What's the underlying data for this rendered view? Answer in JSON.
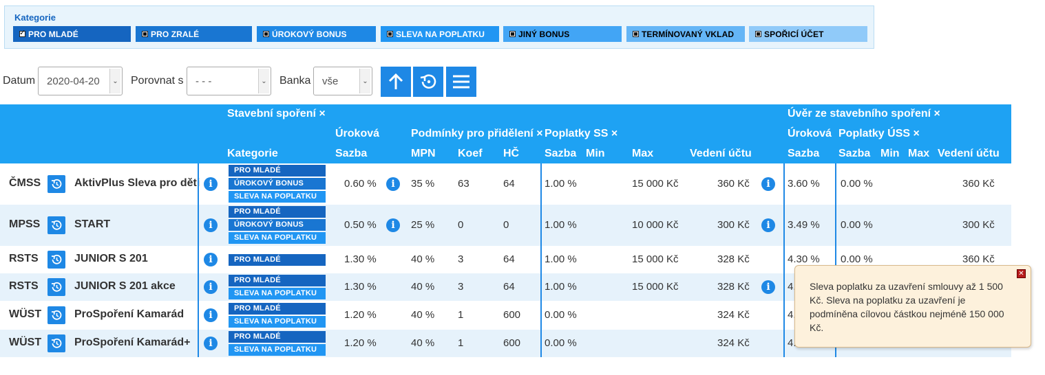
{
  "categories": {
    "title": "Kategorie",
    "chips": [
      {
        "label": "PRO MLADÉ",
        "checked": true,
        "color": "#1565c0"
      },
      {
        "label": "PRO ZRALÉ",
        "checked": false,
        "color": "#1976d2"
      },
      {
        "label": "ÚROKOVÝ BONUS",
        "checked": false,
        "color": "#1e88e5"
      },
      {
        "label": "SLEVA NA POPLATKU",
        "checked": false,
        "color": "#2196f3"
      },
      {
        "label": "JINÝ BONUS",
        "checked": false,
        "color": "#42a5f5"
      },
      {
        "label": "TERMÍNOVANÝ VKLAD",
        "checked": false,
        "color": "#64b5f6"
      },
      {
        "label": "SPOŘICÍ ÚČET",
        "checked": false,
        "color": "#90caf9"
      }
    ]
  },
  "toolbar": {
    "date_label": "Datum",
    "date_value": "2020-04-20",
    "compare_label": "Porovnat s",
    "compare_value": "- - -",
    "bank_label": "Banka",
    "bank_value": "vše"
  },
  "header": {
    "group_ss": "Stavební spoření ×",
    "group_uss": "Úvěr ze stavebního spoření ×",
    "kategorie": "Kategorie",
    "urokova": "Úroková",
    "sazba": "Sazba",
    "podminky": "Podmínky pro přidělení ×",
    "mpn": "MPN",
    "koef": "Koef",
    "hc": "HČ",
    "poplatky_ss": "Poplatky SS ×",
    "min": "Min",
    "max": "Max",
    "vedeni": "Vedení účtu",
    "poplatky_uss": "Poplatky ÚSS ×"
  },
  "rows": [
    {
      "bank": "ČMSS",
      "product": "AktivPlus Sleva pro děti",
      "tags": [
        "PRO MLADÉ",
        "ÚROKOVÝ BONUS",
        "SLEVA NA POPLATKU"
      ],
      "rate": "0.60 %",
      "rate_info": true,
      "mpn": "35 %",
      "koef": "63",
      "hc": "64",
      "fee_rate": "1.00 %",
      "fee_max": "15 000 Kč",
      "fee_account": "360 Kč",
      "fee_info": true,
      "loan_rate": "3.60 %",
      "loan_fee_rate": "0.00 %",
      "loan_account": "360 Kč"
    },
    {
      "bank": "MPSS",
      "product": "START",
      "tags": [
        "PRO MLADÉ",
        "ÚROKOVÝ BONUS",
        "SLEVA NA POPLATKU"
      ],
      "rate": "0.50 %",
      "rate_info": true,
      "mpn": "25 %",
      "koef": "0",
      "hc": "0",
      "fee_rate": "1.00 %",
      "fee_max": "10 000 Kč",
      "fee_account": "300 Kč",
      "fee_info": true,
      "loan_rate": "3.49 %",
      "loan_fee_rate": "0.00 %",
      "loan_account": "300 Kč"
    },
    {
      "bank": "RSTS",
      "product": "JUNIOR S 201",
      "tags": [
        "PRO MLADÉ"
      ],
      "rate": "1.30 %",
      "rate_info": false,
      "mpn": "40 %",
      "koef": "3",
      "hc": "64",
      "fee_rate": "1.00 %",
      "fee_max": "15 000 Kč",
      "fee_account": "328 Kč",
      "fee_info": false,
      "loan_rate": "4.30 %",
      "loan_fee_rate": "0.00 %",
      "loan_account": "360 Kč"
    },
    {
      "bank": "RSTS",
      "product": "JUNIOR S 201 akce",
      "tags": [
        "PRO MLADÉ",
        "SLEVA NA POPLATKU"
      ],
      "rate": "1.30 %",
      "rate_info": false,
      "mpn": "40 %",
      "koef": "3",
      "hc": "64",
      "fee_rate": "1.00 %",
      "fee_max": "15 000 Kč",
      "fee_account": "328 Kč",
      "fee_info": true,
      "loan_rate": "4.",
      "loan_fee_rate": "",
      "loan_account": ""
    },
    {
      "bank": "WÜST",
      "product": "ProSpoření Kamarád",
      "tags": [
        "PRO MLADÉ",
        "SLEVA NA POPLATKU"
      ],
      "rate": "1.20 %",
      "rate_info": false,
      "mpn": "40 %",
      "koef": "1",
      "hc": "600",
      "fee_rate": "0.00 %",
      "fee_max": "",
      "fee_account": "324 Kč",
      "fee_info": false,
      "loan_rate": "4.",
      "loan_fee_rate": "",
      "loan_account": ""
    },
    {
      "bank": "WÜST",
      "product": "ProSpoření Kamarád+",
      "tags": [
        "PRO MLADÉ",
        "SLEVA NA POPLATKU"
      ],
      "rate": "1.20 %",
      "rate_info": false,
      "mpn": "40 %",
      "koef": "1",
      "hc": "600",
      "fee_rate": "0.00 %",
      "fee_max": "",
      "fee_account": "324 Kč",
      "fee_info": false,
      "loan_rate": "4.",
      "loan_fee_rate": "",
      "loan_account": ""
    }
  ],
  "tooltip": {
    "text": "Sleva poplatku za uzavření smlouvy až 1 500 Kč. Sleva na poplatku za uzavření je podmíněna cílovou částkou nejméně 150 000 Kč.",
    "close": "✕"
  },
  "colors": {
    "accent": "#1e88e5",
    "header_bg": "#1ea2f3",
    "row_alt": "#e6f2fb",
    "tag_blue": "#1565c0",
    "tag_light": "#2196f3"
  }
}
